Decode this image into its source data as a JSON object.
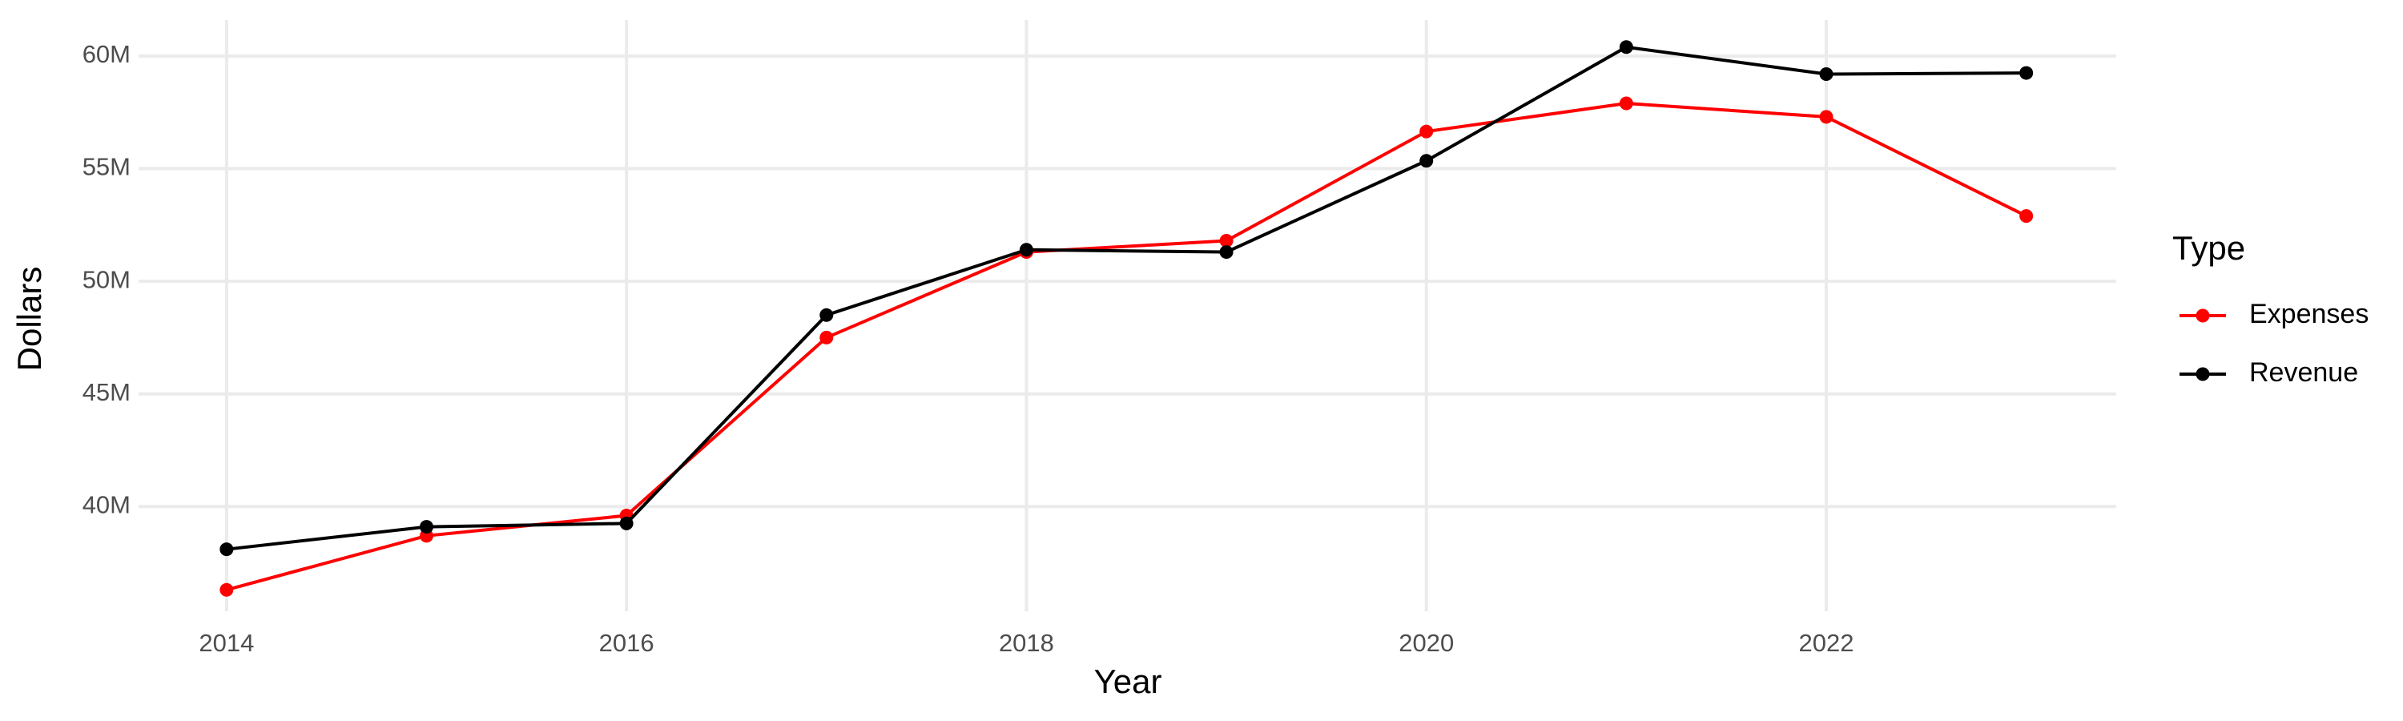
{
  "chart_data": {
    "type": "line",
    "x_label": "Year",
    "y_label": "Dollars",
    "legend_title": "Type",
    "x": [
      2014,
      2015,
      2016,
      2017,
      2018,
      2019,
      2020,
      2021,
      2022,
      2023
    ],
    "series": [
      {
        "name": "Expenses",
        "color": "#ff0000",
        "values": [
          36300000,
          38700000,
          39600000,
          47500000,
          51300000,
          51800000,
          56650000,
          57900000,
          57300000,
          52900000
        ]
      },
      {
        "name": "Revenue",
        "color": "#000000",
        "values": [
          38100000,
          39100000,
          39250000,
          48500000,
          51400000,
          51300000,
          55350000,
          60400000,
          59200000,
          59250000
        ]
      }
    ],
    "xlim": [
      2013.56,
      2023.45
    ],
    "xticks": [
      2014,
      2016,
      2018,
      2020,
      2022
    ],
    "ylim": [
      35350000,
      61600000
    ],
    "yticks": [
      {
        "value": 40000000,
        "label": "40M"
      },
      {
        "value": 45000000,
        "label": "45M"
      },
      {
        "value": 50000000,
        "label": "50M"
      },
      {
        "value": 55000000,
        "label": "55M"
      },
      {
        "value": 60000000,
        "label": "60M"
      }
    ],
    "grid": true,
    "legend": "right"
  }
}
